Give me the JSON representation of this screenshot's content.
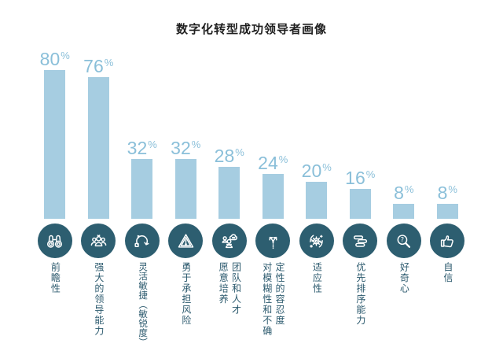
{
  "title": "数字化转型成功领导者画像",
  "chart_data": {
    "type": "bar",
    "title": "数字化转型成功领导者画像",
    "unit": "%",
    "value_labels_shown": true,
    "axes_shown": false,
    "legend": null,
    "categories": [
      "前瞻性",
      "强大的领导能力",
      "灵活敏捷（敏锐度）",
      "勇于承担风险",
      "愿意培养团队和人才",
      "对模糊性和不确定性的容忍度",
      "适应性",
      "优先排序能力",
      "好奇心",
      "自信"
    ],
    "values": [
      80,
      76,
      32,
      32,
      28,
      24,
      20,
      16,
      8,
      8
    ],
    "items": [
      {
        "value": 80,
        "icon": "binoculars-icon",
        "label": "前瞻性",
        "columns": [
          "前瞻性"
        ]
      },
      {
        "value": 76,
        "icon": "people-group-icon",
        "label": "强大的领导能力",
        "columns": [
          "强大的领导能力"
        ]
      },
      {
        "value": 32,
        "icon": "agile-cycle-icon",
        "label": "灵活敏捷（敏锐度）",
        "columns": [
          "灵活敏捷（敏锐度）"
        ]
      },
      {
        "value": 32,
        "icon": "warning-triangle-icon",
        "label": "勇于承担风险",
        "columns": [
          "勇于承担风险"
        ]
      },
      {
        "value": 28,
        "icon": "team-development-icon",
        "label": "愿意培养团队和人才",
        "columns": [
          "愿意培养",
          "团队和人才"
        ]
      },
      {
        "value": 24,
        "icon": "branching-arrows-icon",
        "label": "对模糊性和不确定性的容忍度",
        "columns": [
          "对模糊性和不确",
          "定性的容忍度"
        ]
      },
      {
        "value": 20,
        "icon": "gear-process-icon",
        "label": "适应性",
        "columns": [
          "适应性"
        ]
      },
      {
        "value": 16,
        "icon": "stacked-layers-icon",
        "label": "优先排序能力",
        "columns": [
          "优先排序能力"
        ]
      },
      {
        "value": 8,
        "icon": "magnifier-question-icon",
        "label": "好奇心",
        "columns": [
          "好奇心"
        ]
      },
      {
        "value": 8,
        "icon": "thumbs-up-icon",
        "label": "自信",
        "columns": [
          "自信"
        ]
      }
    ],
    "colors": {
      "bar": "#a6cde1",
      "percent_text": "#8abfd9",
      "icon_circle": "#2d5e70",
      "label_text": "#2c5a6e",
      "title_text": "#1f1f1f",
      "background": "#ffffff",
      "icon_stroke": "#ffffff"
    }
  }
}
